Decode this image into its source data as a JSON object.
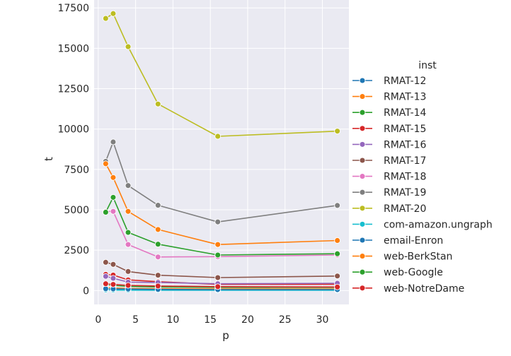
{
  "chart_data": {
    "type": "line",
    "xlabel": "p",
    "ylabel": "t",
    "xlim": [
      -0.55,
      33.55
    ],
    "ylim": [
      -860,
      17990
    ],
    "xticks": [
      0,
      5,
      10,
      15,
      20,
      25,
      30
    ],
    "yticks": [
      0,
      2500,
      5000,
      7500,
      10000,
      12500,
      15000,
      17500
    ],
    "ytick_labels": [
      "0",
      "2500",
      "5000",
      "7500",
      "10000",
      "12500",
      "15000",
      "17500"
    ],
    "grid": true,
    "marker": "circle",
    "legend": {
      "title": "inst",
      "placement": "right"
    },
    "x": [
      1,
      2,
      4,
      8,
      16,
      32
    ],
    "series": [
      {
        "name": "RMAT-12",
        "color": "#1f77b4",
        "values": [
          90,
          80,
          70,
          60,
          55,
          50
        ]
      },
      {
        "name": "RMAT-13",
        "color": "#ff7f0e",
        "values": [
          180,
          160,
          130,
          110,
          100,
          95
        ]
      },
      {
        "name": "RMAT-14",
        "color": "#2ca02c",
        "values": [
          360,
          320,
          260,
          220,
          200,
          190
        ]
      },
      {
        "name": "RMAT-15",
        "color": "#d62728",
        "values": [
          1000,
          960,
          660,
          550,
          380,
          390
        ]
      },
      {
        "name": "RMAT-16",
        "color": "#9467bd",
        "values": [
          880,
          760,
          520,
          500,
          420,
          450
        ]
      },
      {
        "name": "RMAT-17",
        "color": "#8c564b",
        "values": [
          1750,
          1620,
          1180,
          950,
          800,
          900
        ]
      },
      {
        "name": "RMAT-18",
        "color": "#e377c2",
        "values": [
          4900,
          4900,
          2850,
          2080,
          2100,
          2200
        ]
      },
      {
        "name": "RMAT-19",
        "color": "#7f7f7f",
        "values": [
          8000,
          9200,
          6500,
          5280,
          4250,
          5270
        ]
      },
      {
        "name": "RMAT-20",
        "color": "#bcbd22",
        "values": [
          16850,
          17150,
          15100,
          11550,
          9550,
          9870
        ]
      },
      {
        "name": "com-amazon.ungraph",
        "color": "#17becf",
        "values": [
          40,
          30,
          25,
          20,
          18,
          18
        ]
      },
      {
        "name": "email-Enron",
        "color": "#1f77b4",
        "values": [
          110,
          100,
          90,
          70,
          60,
          60
        ]
      },
      {
        "name": "web-BerkStan",
        "color": "#ff7f0e",
        "values": [
          7850,
          7000,
          4900,
          3780,
          2850,
          3100
        ]
      },
      {
        "name": "web-Google",
        "color": "#2ca02c",
        "values": [
          4850,
          5770,
          3600,
          2870,
          2200,
          2280
        ]
      },
      {
        "name": "web-NotreDame",
        "color": "#d62728",
        "values": [
          420,
          380,
          320,
          280,
          240,
          220
        ]
      }
    ]
  }
}
